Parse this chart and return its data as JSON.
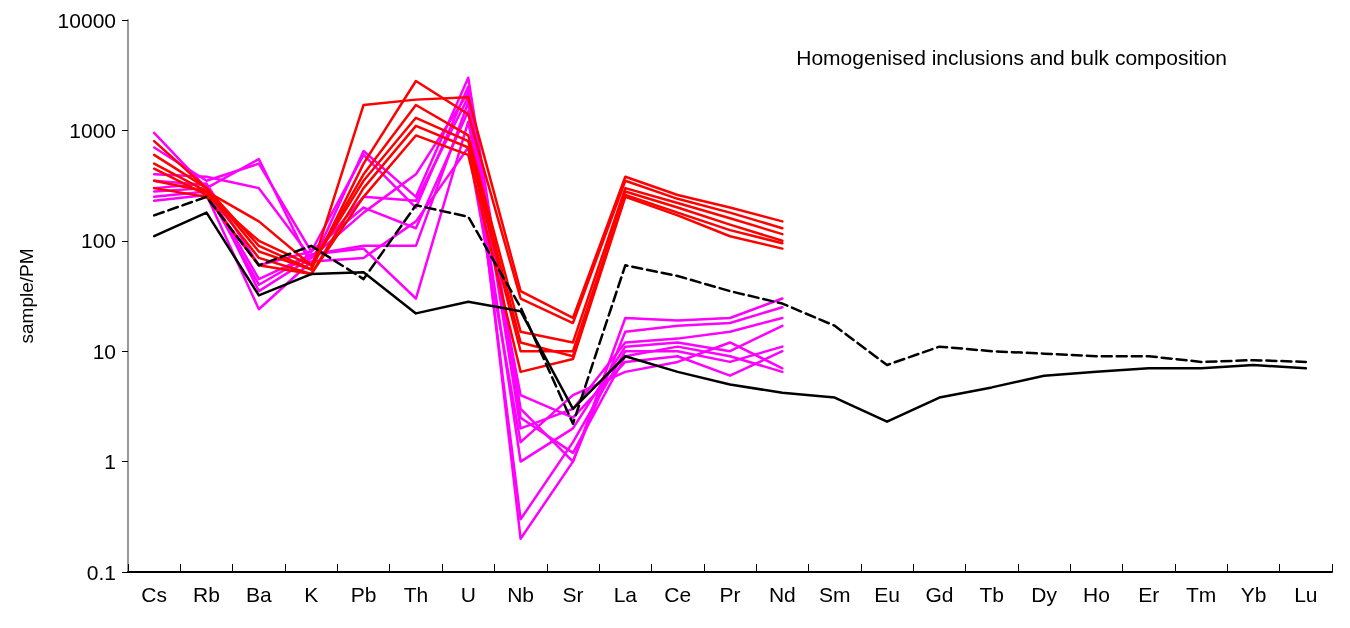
{
  "chart_data": {
    "type": "line",
    "title": "Homogenised inclusions and bulk composition",
    "ylabel": "sample/PM",
    "log": true,
    "grid": false,
    "legend": false,
    "marker": "none",
    "line_style": "solid",
    "ylim": [
      0.1,
      10000
    ],
    "yticks": [
      0.1,
      1,
      10,
      100,
      1000,
      10000
    ],
    "categories": [
      "Cs",
      "Rb",
      "Ba",
      "K",
      "Pb",
      "Th",
      "U",
      "Nb",
      "Sr",
      "La",
      "Ce",
      "Pr",
      "Nd",
      "Sm",
      "Eu",
      "Gd",
      "Tb",
      "Dy",
      "Ho",
      "Er",
      "Tm",
      "Yb",
      "Lu"
    ],
    "series": [
      {
        "color": "#ff00ff",
        "values": [
          950,
          300,
          550,
          60,
          650,
          250,
          3000,
          3,
          1,
          20,
          19,
          20,
          30,
          null,
          null,
          null,
          null,
          null,
          null,
          null,
          null,
          null,
          null
        ]
      },
      {
        "color": "#ff00ff",
        "values": [
          700,
          350,
          500,
          80,
          600,
          200,
          2500,
          0.2,
          1,
          15,
          17,
          18,
          25,
          null,
          null,
          null,
          null,
          null,
          null,
          null,
          null,
          null,
          null
        ]
      },
      {
        "color": "#ff00ff",
        "values": [
          400,
          380,
          300,
          70,
          250,
          230,
          2000,
          2,
          3,
          12,
          13,
          15,
          20,
          null,
          null,
          null,
          null,
          null,
          null,
          null,
          null,
          null,
          null
        ]
      },
      {
        "color": "#ff00ff",
        "values": [
          300,
          330,
          60,
          80,
          200,
          130,
          1500,
          1,
          2,
          11,
          12,
          10,
          17,
          null,
          null,
          null,
          null,
          null,
          null,
          null,
          null,
          null,
          null
        ]
      },
      {
        "color": "#ff00ff",
        "values": [
          280,
          300,
          45,
          75,
          90,
          90,
          1800,
          0.3,
          1.5,
          10,
          10,
          8,
          11,
          null,
          null,
          null,
          null,
          null,
          null,
          null,
          null,
          null,
          null
        ]
      },
      {
        "color": "#ff00ff",
        "values": [
          250,
          280,
          40,
          75,
          85,
          30,
          1200,
          4,
          2.5,
          8,
          9,
          6,
          10,
          null,
          null,
          null,
          null,
          null,
          null,
          null,
          null,
          null,
          null
        ]
      },
      {
        "color": "#ff00ff",
        "values": [
          230,
          260,
          24,
          65,
          70,
          150,
          700,
          1.5,
          4,
          6.5,
          8,
          12,
          7,
          null,
          null,
          null,
          null,
          null,
          null,
          null,
          null,
          null,
          null
        ]
      },
      {
        "color": "#ff00ff",
        "values": [
          350,
          320,
          35,
          70,
          180,
          400,
          2200,
          2.5,
          1.2,
          9,
          11,
          9,
          6.5,
          null,
          null,
          null,
          null,
          null,
          null,
          null,
          null,
          null,
          null
        ]
      },
      {
        "color": "#ff0000",
        "values": [
          800,
          300,
          90,
          55,
          1700,
          1900,
          2000,
          35,
          20,
          380,
          260,
          200,
          150,
          null,
          null,
          null,
          null,
          null,
          null,
          null,
          null,
          null,
          null
        ]
      },
      {
        "color": "#ff0000",
        "values": [
          600,
          300,
          80,
          55,
          500,
          2800,
          1400,
          30,
          18,
          350,
          240,
          180,
          130,
          null,
          null,
          null,
          null,
          null,
          null,
          null,
          null,
          null,
          null
        ]
      },
      {
        "color": "#ff0000",
        "values": [
          500,
          280,
          150,
          60,
          400,
          1700,
          900,
          15,
          12,
          300,
          220,
          160,
          115,
          null,
          null,
          null,
          null,
          null,
          null,
          null,
          null,
          null,
          null
        ]
      },
      {
        "color": "#ff0000",
        "values": [
          450,
          260,
          100,
          60,
          350,
          1300,
          800,
          12,
          9,
          280,
          200,
          140,
          100,
          null,
          null,
          null,
          null,
          null,
          null,
          null,
          null,
          null,
          null
        ]
      },
      {
        "color": "#ff0000",
        "values": [
          350,
          280,
          70,
          50,
          300,
          1100,
          700,
          10,
          10,
          260,
          180,
          125,
          95,
          null,
          null,
          null,
          null,
          null,
          null,
          null,
          null,
          null,
          null
        ]
      },
      {
        "color": "#ff0000",
        "values": [
          300,
          250,
          60,
          50,
          250,
          900,
          600,
          6.5,
          8.5,
          250,
          170,
          110,
          85,
          null,
          null,
          null,
          null,
          null,
          null,
          null,
          null,
          null,
          null
        ]
      },
      {
        "color": "#000000",
        "line_style": "dashed",
        "values": [
          170,
          250,
          60,
          90,
          45,
          210,
          165,
          25,
          2.2,
          60,
          48,
          35,
          27,
          17,
          7.5,
          11,
          10,
          9.5,
          9,
          9,
          8,
          8.3,
          8
        ]
      },
      {
        "color": "#000000",
        "line_style": "solid",
        "values": [
          110,
          180,
          32,
          50,
          52,
          22,
          28,
          23,
          3,
          9,
          6.5,
          5,
          4.2,
          3.8,
          2.3,
          3.8,
          4.7,
          6,
          6.5,
          7,
          7,
          7.5,
          7
        ]
      }
    ]
  }
}
